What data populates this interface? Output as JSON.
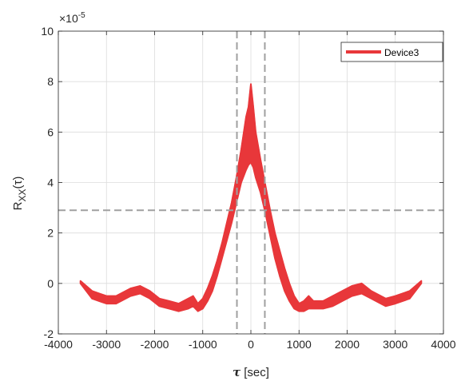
{
  "chart_data": {
    "type": "line",
    "title": "",
    "xlabel_symbol": "τ",
    "xlabel_unit": "[sec]",
    "ylabel_main": "R",
    "ylabel_sub": "XX",
    "ylabel_arg": "(τ)",
    "y_exponent_base": "×10",
    "y_exponent_power": "-5",
    "xlim": [
      -4000,
      4000
    ],
    "ylim": [
      -2,
      10
    ],
    "xticks": [
      -4000,
      -3000,
      -2000,
      -1000,
      0,
      1000,
      2000,
      3000,
      4000
    ],
    "yticks": [
      -2,
      0,
      2,
      4,
      6,
      8,
      10
    ],
    "grid": true,
    "legend_position": "top-right",
    "reference_lines": {
      "vertical": [
        -290,
        290
      ],
      "horizontal": [
        2.9
      ],
      "color": "#a0a0a0",
      "style": "dashed"
    },
    "series": [
      {
        "name": "Device3",
        "color": "#e8373a",
        "x": [
          -3540,
          -3300,
          -3000,
          -2800,
          -2500,
          -2300,
          -2100,
          -1900,
          -1700,
          -1500,
          -1300,
          -1200,
          -1100,
          -1000,
          -900,
          -800,
          -700,
          -600,
          -500,
          -400,
          -300,
          -200,
          -100,
          -50,
          0,
          50,
          100,
          200,
          300,
          400,
          500,
          600,
          700,
          800,
          900,
          1000,
          1100,
          1200,
          1300,
          1500,
          1700,
          1900,
          2100,
          2300,
          2500,
          2800,
          3000,
          3300,
          3540
        ],
        "y_upper": [
          0.1,
          -0.3,
          -0.5,
          -0.5,
          -0.2,
          -0.1,
          -0.3,
          -0.6,
          -0.7,
          -0.8,
          -0.6,
          -0.5,
          -0.8,
          -0.6,
          -0.2,
          0.3,
          0.9,
          1.6,
          2.4,
          3.2,
          4.2,
          5.3,
          6.6,
          7.0,
          7.9,
          7.0,
          6.0,
          4.9,
          3.9,
          2.9,
          2.0,
          1.3,
          0.6,
          0.0,
          -0.5,
          -0.8,
          -0.7,
          -0.5,
          -0.7,
          -0.7,
          -0.5,
          -0.3,
          -0.1,
          0.0,
          -0.3,
          -0.6,
          -0.5,
          -0.3,
          0.1
        ],
        "y_lower": [
          0.0,
          -0.6,
          -0.8,
          -0.8,
          -0.5,
          -0.4,
          -0.6,
          -0.9,
          -1.0,
          -1.1,
          -1.0,
          -0.9,
          -1.1,
          -1.0,
          -0.7,
          -0.3,
          0.3,
          1.0,
          1.7,
          2.4,
          3.2,
          4.0,
          4.5,
          4.7,
          4.8,
          4.6,
          4.2,
          3.6,
          2.8,
          1.9,
          1.0,
          0.3,
          -0.3,
          -0.7,
          -1.0,
          -1.1,
          -1.1,
          -1.0,
          -1.0,
          -1.0,
          -0.9,
          -0.7,
          -0.5,
          -0.4,
          -0.6,
          -0.9,
          -0.8,
          -0.6,
          0.0
        ]
      }
    ]
  }
}
